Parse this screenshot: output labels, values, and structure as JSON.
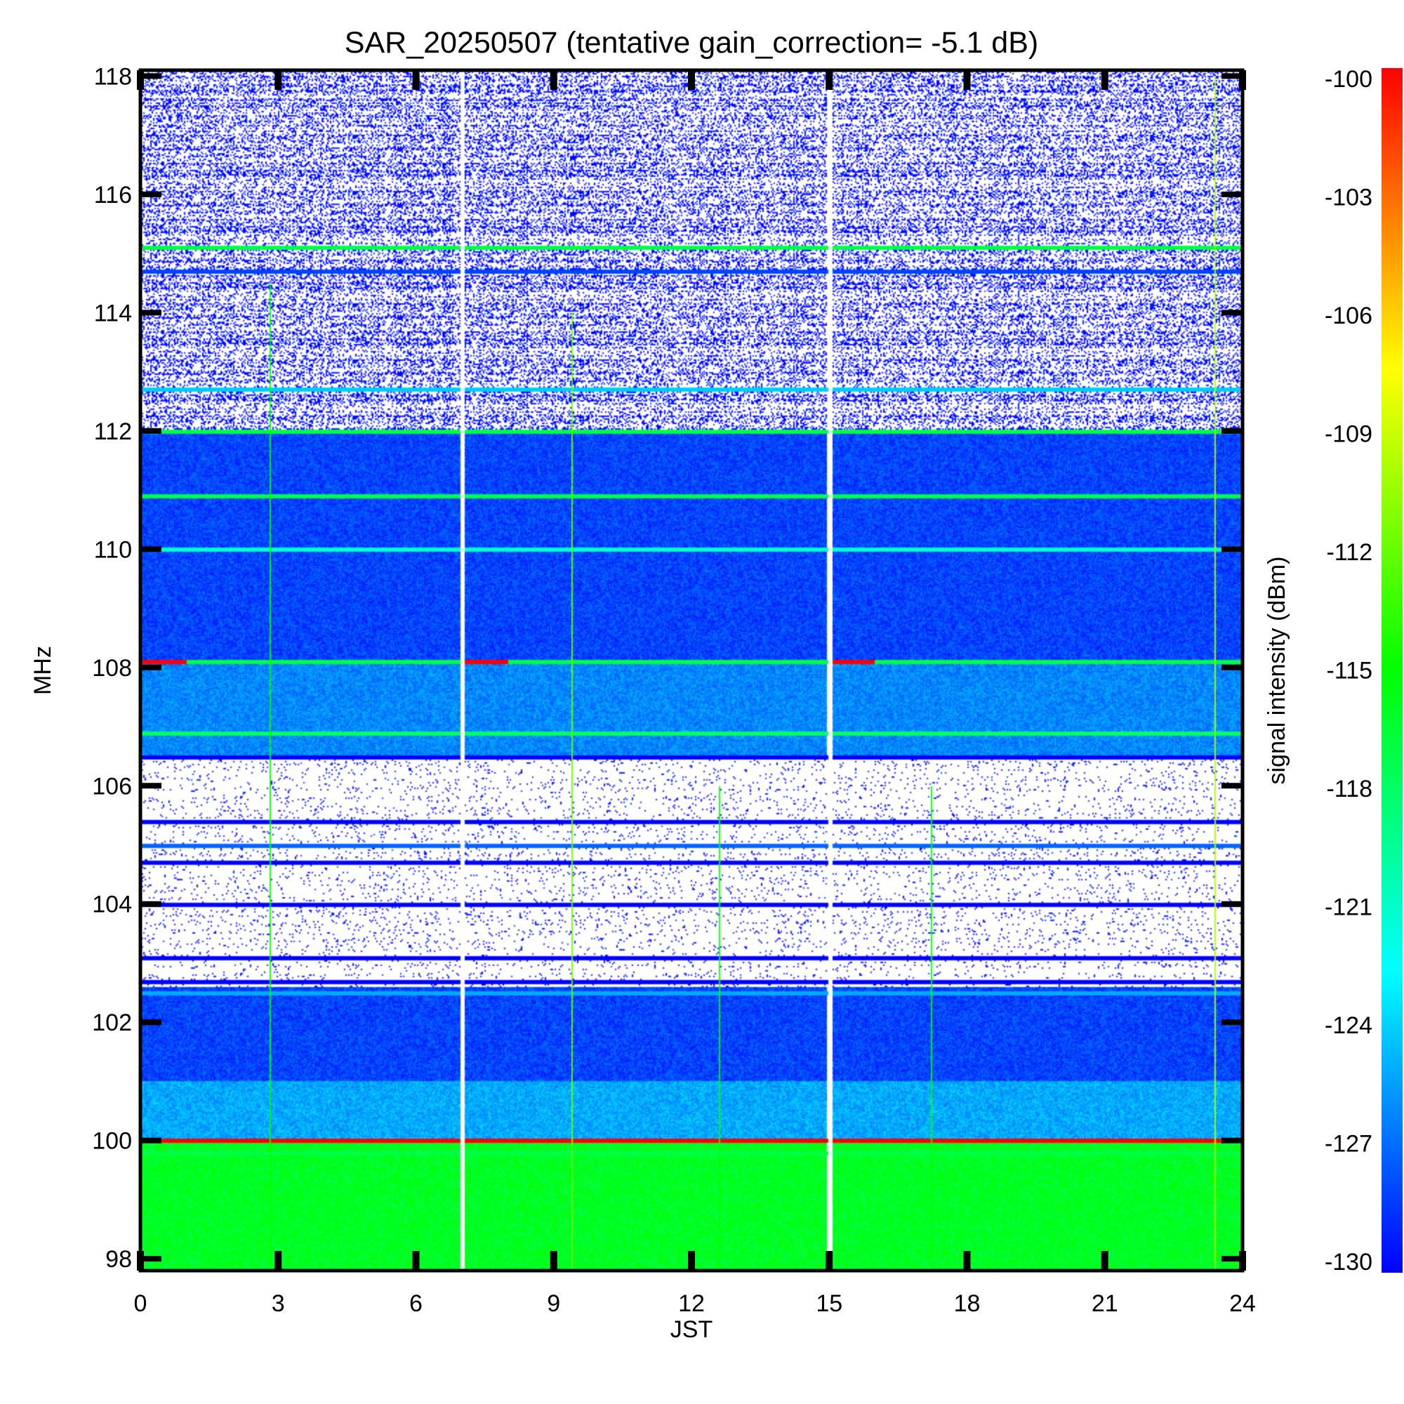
{
  "chart_data": {
    "type": "heatmap",
    "title": "SAR_20250507 (tentative gain_correction= -5.1 dB)",
    "xlabel": "JST",
    "ylabel": "MHz",
    "colorbar_label": "signal intensity (dBm)",
    "xlim": [
      0,
      24
    ],
    "ylim": [
      97.8,
      118.1
    ],
    "color_range": [
      -130,
      -100
    ],
    "x_ticks": [
      0,
      3,
      6,
      9,
      12,
      15,
      18,
      21,
      24
    ],
    "x_tick_labels": [
      "0",
      "3",
      "6",
      "9",
      "12",
      "15",
      "18",
      "21",
      "24"
    ],
    "y_ticks": [
      98,
      100,
      102,
      104,
      106,
      108,
      110,
      112,
      114,
      116,
      118
    ],
    "y_tick_labels": [
      "98",
      "100",
      "102",
      "104",
      "106",
      "108",
      "110",
      "112",
      "114",
      "116",
      "118"
    ],
    "colorbar_ticks": [
      -100,
      -103,
      -106,
      -109,
      -112,
      -115,
      -118,
      -121,
      -124,
      -127,
      -130
    ],
    "colorbar_tick_labels": [
      "-100",
      "-103",
      "-106",
      "-109",
      "-112",
      "-115",
      "-118",
      "-121",
      "-124",
      "-127",
      "-130"
    ],
    "data_gaps_jst": [
      7.0,
      15.0
    ],
    "regions": [
      {
        "freq_range": [
          112.0,
          118.1
        ],
        "level_dbm": -130,
        "density": 0.35
      },
      {
        "freq_range": [
          108.1,
          112.0
        ],
        "level_dbm": -128,
        "density": 1.0
      },
      {
        "freq_range": [
          106.5,
          108.1
        ],
        "level_dbm": -126,
        "density": 1.0
      },
      {
        "freq_range": [
          102.6,
          106.5
        ],
        "level_dbm": -130,
        "density": 0.06
      },
      {
        "freq_range": [
          101.0,
          102.6
        ],
        "level_dbm": -128,
        "density": 1.0
      },
      {
        "freq_range": [
          100.0,
          101.0
        ],
        "level_dbm": -125,
        "density": 1.0
      },
      {
        "freq_range": [
          97.8,
          100.0
        ],
        "level_dbm": -116,
        "density": 1.0
      }
    ],
    "bands": [
      {
        "freq": 115.1,
        "level_dbm": -117
      },
      {
        "freq": 114.7,
        "level_dbm": -128
      },
      {
        "freq": 112.7,
        "level_dbm": -124
      },
      {
        "freq": 112.0,
        "level_dbm": -117
      },
      {
        "freq": 110.9,
        "level_dbm": -117
      },
      {
        "freq": 110.0,
        "level_dbm": -121
      },
      {
        "freq": 108.1,
        "level_dbm": -117
      },
      {
        "freq": 106.9,
        "level_dbm": -118
      },
      {
        "freq": 106.5,
        "level_dbm": -130
      },
      {
        "freq": 105.4,
        "level_dbm": -130
      },
      {
        "freq": 105.0,
        "level_dbm": -127
      },
      {
        "freq": 104.7,
        "level_dbm": -130
      },
      {
        "freq": 104.0,
        "level_dbm": -130
      },
      {
        "freq": 103.1,
        "level_dbm": -130
      },
      {
        "freq": 102.7,
        "level_dbm": -130
      },
      {
        "freq": 102.5,
        "level_dbm": -125
      },
      {
        "freq": 100.0,
        "level_dbm": -100
      },
      {
        "freq": 99.8,
        "level_dbm": -117
      }
    ],
    "partial_bands": [
      {
        "freq": 108.1,
        "x_range": [
          0.0,
          1.0
        ],
        "level_dbm": -100
      },
      {
        "freq": 108.1,
        "x_range": [
          7.0,
          8.0
        ],
        "level_dbm": -100
      },
      {
        "freq": 108.1,
        "x_range": [
          15.0,
          16.0
        ],
        "level_dbm": -100
      }
    ],
    "bursts": [
      {
        "jst": 2.8,
        "freq_range": [
          97.8,
          114.5
        ],
        "level_dbm": -115
      },
      {
        "jst": 9.4,
        "freq_range": [
          97.8,
          114.0
        ],
        "level_dbm": -112
      },
      {
        "jst": 12.6,
        "freq_range": [
          97.8,
          106.0
        ],
        "level_dbm": -115
      },
      {
        "jst": 17.2,
        "freq_range": [
          97.8,
          106.0
        ],
        "level_dbm": -115
      },
      {
        "jst": 23.4,
        "freq_range": [
          97.8,
          118.0
        ],
        "level_dbm": -110
      }
    ]
  }
}
